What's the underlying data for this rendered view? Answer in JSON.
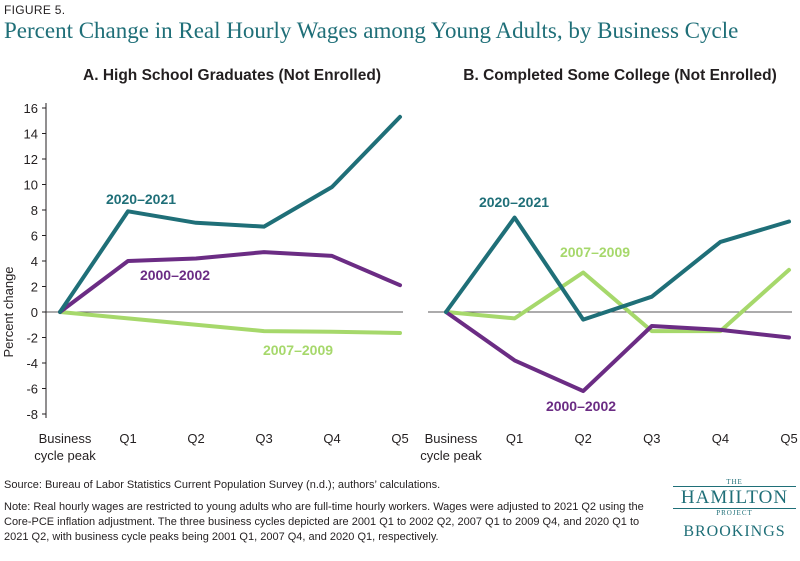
{
  "figure_label": "FIGURE 5.",
  "title": "Percent Change in Real Hourly Wages among Young Adults, by Business Cycle",
  "ylabel": "Percent change",
  "source": "Source: Bureau of Labor Statistics Current Population Survey (n.d.); authors’ calculations.",
  "note": "Note: Real hourly wages are restricted to young adults who are full-time hourly workers. Wages were adjusted to 2021 Q2 using the Core-PCE inflation adjustment. The three business cycles depicted are 2001 Q1 to 2002 Q2, 2007 Q1 to 2009 Q4, and 2020 Q1 to 2021 Q2, with business cycle peaks being 2001 Q1, 2007 Q4, and 2020 Q1, respectively.",
  "logo": {
    "the": "THE",
    "hamilton": "HAMILTON",
    "project": "PROJECT",
    "brookings": "BROOKINGS"
  },
  "colors": {
    "2020–2021": "#1f6f78",
    "2000–2002": "#6b2c84",
    "2007–2009": "#a6d86b",
    "title": "#1f6f78"
  },
  "chart_data": [
    {
      "type": "line",
      "title": "A. High School Graduates (Not Enrolled)",
      "categories": [
        "Business cycle peak",
        "Q1",
        "Q2",
        "Q3",
        "Q4",
        "Q5"
      ],
      "ylim": [
        -8,
        16
      ],
      "yticks": [
        -8,
        -6,
        -4,
        -2,
        0,
        2,
        4,
        6,
        8,
        10,
        12,
        14,
        16
      ],
      "series": [
        {
          "name": "2020–2021",
          "values": [
            0,
            7.9,
            7.0,
            6.7,
            9.8,
            15.3
          ]
        },
        {
          "name": "2000–2002",
          "values": [
            0,
            4.0,
            4.2,
            4.7,
            4.4,
            2.1
          ]
        },
        {
          "name": "2007–2009",
          "values": [
            0,
            -0.5,
            -1.0,
            -1.5,
            -1.55,
            -1.65
          ]
        }
      ]
    },
    {
      "type": "line",
      "title": "B. Completed Some College (Not Enrolled)",
      "categories": [
        "Business cycle peak",
        "Q1",
        "Q2",
        "Q3",
        "Q4",
        "Q5"
      ],
      "ylim": [
        -8,
        16
      ],
      "series": [
        {
          "name": "2020–2021",
          "values": [
            0,
            7.4,
            -0.6,
            1.2,
            5.5,
            7.1
          ]
        },
        {
          "name": "2007–2009",
          "values": [
            0,
            -0.5,
            3.1,
            -1.5,
            -1.5,
            3.3
          ]
        },
        {
          "name": "2000–2002",
          "values": [
            0,
            -3.8,
            -6.2,
            -1.1,
            -1.4,
            -2.0
          ]
        }
      ]
    }
  ]
}
